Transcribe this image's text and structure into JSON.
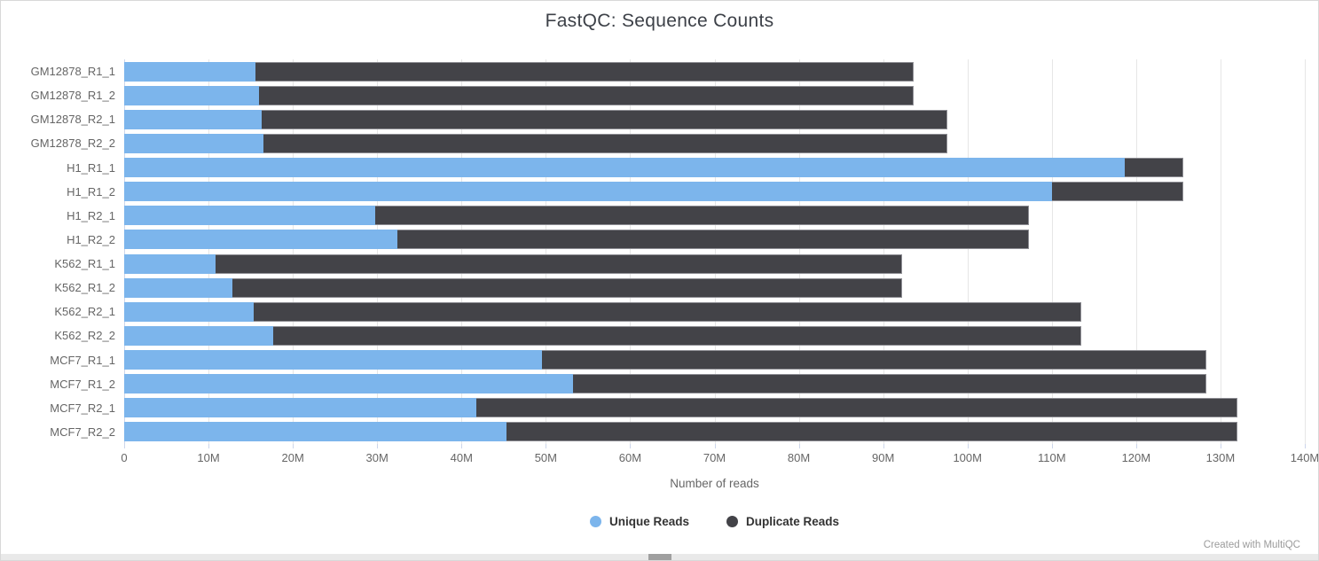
{
  "title": "FastQC: Sequence Counts",
  "xlabel": "Number of reads",
  "footer": "Created with MultiQC",
  "x_ticks": [
    "0",
    "10M",
    "20M",
    "30M",
    "40M",
    "50M",
    "60M",
    "70M",
    "80M",
    "90M",
    "100M",
    "110M",
    "120M",
    "130M",
    "140M"
  ],
  "legend": [
    {
      "label": "Unique Reads",
      "color": "#7cb5ec"
    },
    {
      "label": "Duplicate Reads",
      "color": "#434348"
    }
  ],
  "colors": {
    "unique_reads": "#7cb5ec",
    "duplicate_reads": "#434348",
    "gridline": "#e6e6e6",
    "axis_line": "#ccd6eb",
    "tick_text": "#666666",
    "title_text": "#3d4148",
    "legend_text": "#333333",
    "credit_text": "#9b9b9b"
  },
  "chart_data": {
    "type": "bar",
    "orientation": "horizontal",
    "stacked": true,
    "title": "FastQC: Sequence Counts",
    "xlabel": "Number of reads",
    "value_unit": "millions of reads",
    "xlim": [
      0,
      140
    ],
    "x_tick_step": 10,
    "grid": true,
    "legend_position": "bottom",
    "categories": [
      "GM12878_R1_1",
      "GM12878_R1_2",
      "GM12878_R2_1",
      "GM12878_R2_2",
      "H1_R1_1",
      "H1_R1_2",
      "H1_R2_1",
      "H1_R2_2",
      "K562_R1_1",
      "K562_R1_2",
      "K562_R2_1",
      "K562_R2_2",
      "MCF7_R1_1",
      "MCF7_R1_2",
      "MCF7_R2_1",
      "MCF7_R2_2"
    ],
    "series": [
      {
        "name": "Unique Reads",
        "color": "#7cb5ec",
        "values": [
          15.6,
          16.0,
          16.3,
          16.5,
          118.7,
          110.0,
          29.8,
          32.4,
          10.8,
          12.8,
          15.4,
          17.7,
          49.5,
          53.2,
          41.8,
          45.3
        ]
      },
      {
        "name": "Duplicate Reads",
        "color": "#434348",
        "values": [
          78.0,
          77.6,
          81.3,
          81.1,
          6.9,
          15.6,
          77.5,
          74.9,
          81.4,
          79.4,
          98.1,
          95.8,
          78.8,
          75.1,
          90.2,
          86.7
        ]
      }
    ],
    "totals": [
      93.6,
      93.6,
      97.6,
      97.6,
      125.6,
      125.6,
      107.3,
      107.3,
      92.2,
      92.2,
      113.5,
      113.5,
      128.3,
      128.3,
      132.0,
      132.0
    ]
  }
}
